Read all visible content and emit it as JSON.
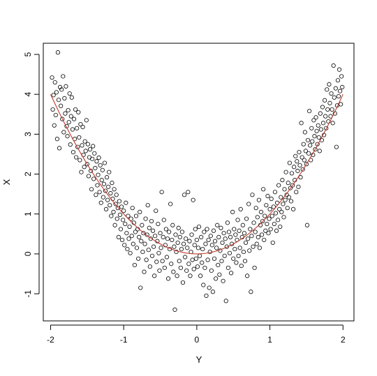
{
  "chart_data": {
    "type": "scatter",
    "title": "",
    "xlabel": "Y",
    "ylabel": "X",
    "xlim": [
      -2.1,
      2.15
    ],
    "ylim": [
      -1.68,
      5.28
    ],
    "x_ticks": [
      -2,
      -1,
      0,
      1,
      2
    ],
    "x_tick_labels": [
      "-2",
      "-1",
      "0",
      "1",
      "2"
    ],
    "y_ticks": [
      -1,
      0,
      1,
      2,
      3,
      4,
      5
    ],
    "y_tick_labels": [
      "-1",
      "0",
      "1",
      "2",
      "3",
      "4",
      "5"
    ],
    "grid": false,
    "point_style": "open-circle",
    "curve": {
      "type": "line",
      "color": "#c0392b",
      "formula": "y = x^2",
      "x_range": [
        -2,
        2
      ]
    },
    "points": [
      [
        -1.98,
        4.42
      ],
      [
        -1.97,
        3.62
      ],
      [
        -1.96,
        3.98
      ],
      [
        -1.95,
        3.22
      ],
      [
        -1.94,
        4.3
      ],
      [
        -1.93,
        3.48
      ],
      [
        -1.92,
        4.05
      ],
      [
        -1.91,
        2.88
      ],
      [
        -1.9,
        5.05
      ],
      [
        -1.89,
        3.86
      ],
      [
        -1.88,
        2.65
      ],
      [
        -1.87,
        4.18
      ],
      [
        -1.86,
        3.71
      ],
      [
        -1.85,
        4.12
      ],
      [
        -1.84,
        3.38
      ],
      [
        -1.83,
        4.45
      ],
      [
        -1.82,
        3.05
      ],
      [
        -1.81,
        3.9
      ],
      [
        -1.8,
        3.52
      ],
      [
        -1.79,
        4.2
      ],
      [
        -1.78,
        3.2
      ],
      [
        -1.77,
        2.95
      ],
      [
        -1.76,
        3.6
      ],
      [
        -1.75,
        3.3
      ],
      [
        -1.74,
        4.02
      ],
      [
        -1.73,
        2.74
      ],
      [
        -1.72,
        3.45
      ],
      [
        -1.71,
        3.92
      ],
      [
        -1.7,
        3.12
      ],
      [
        -1.69,
        2.55
      ],
      [
        -1.68,
        3.38
      ],
      [
        -1.67,
        2.88
      ],
      [
        -1.66,
        3.62
      ],
      [
        -1.65,
        2.42
      ],
      [
        -1.64,
        3.15
      ],
      [
        -1.63,
        2.68
      ],
      [
        -1.62,
        3.55
      ],
      [
        -1.61,
        2.92
      ],
      [
        -1.6,
        2.35
      ],
      [
        -1.59,
        3.25
      ],
      [
        -1.58,
        2.05
      ],
      [
        -1.57,
        2.72
      ],
      [
        -1.56,
        3.18
      ],
      [
        -1.55,
        2.48
      ],
      [
        -1.54,
        2.18
      ],
      [
        -1.53,
        2.82
      ],
      [
        -1.52,
        2.58
      ],
      [
        -1.51,
        3.35
      ],
      [
        -1.5,
        2.25
      ],
      [
        -1.49,
        2.75
      ],
      [
        -1.48,
        1.95
      ],
      [
        -1.47,
        2.42
      ],
      [
        -1.46,
        2.62
      ],
      [
        -1.45,
        2.08
      ],
      [
        -1.44,
        1.62
      ],
      [
        -1.43,
        2.38
      ],
      [
        -1.42,
        2.7
      ],
      [
        -1.41,
        1.88
      ],
      [
        -1.4,
        2.52
      ],
      [
        -1.39,
        2.15
      ],
      [
        -1.38,
        1.48
      ],
      [
        -1.37,
        2.32
      ],
      [
        -1.36,
        1.72
      ],
      [
        -1.35,
        1.98
      ],
      [
        -1.34,
        2.41
      ],
      [
        -1.33,
        1.55
      ],
      [
        -1.32,
        2.22
      ],
      [
        -1.31,
        1.28
      ],
      [
        -1.3,
        1.85
      ],
      [
        -1.29,
        2.1
      ],
      [
        -1.28,
        1.42
      ],
      [
        -1.27,
        1.75
      ],
      [
        -1.26,
        2.28
      ],
      [
        -1.25,
        1.58
      ],
      [
        -1.24,
        1.12
      ],
      [
        -1.23,
        1.92
      ],
      [
        -1.22,
        1.35
      ],
      [
        -1.21,
        1.68
      ],
      [
        -1.2,
        2.05
      ],
      [
        -1.19,
        1.22
      ],
      [
        -1.18,
        1.52
      ],
      [
        -1.17,
        0.95
      ],
      [
        -1.16,
        1.78
      ],
      [
        -1.15,
        1.38
      ],
      [
        -1.14,
        1.05
      ],
      [
        -1.13,
        1.62
      ],
      [
        -1.12,
        0.72
      ],
      [
        -1.11,
        1.25
      ],
      [
        -1.1,
        1.48
      ],
      [
        -1.09,
        0.88
      ],
      [
        -1.08,
        1.15
      ],
      [
        -1.07,
        0.42
      ],
      [
        -1.06,
        1.32
      ],
      [
        -1.05,
        0.98
      ],
      [
        -1.04,
        0.62
      ],
      [
        -1.03,
        1.18
      ],
      [
        -1.02,
        0.35
      ],
      [
        -1.01,
        0.85
      ],
      [
        -1.0,
        1.08
      ],
      [
        -0.99,
        0.22
      ],
      [
        -0.98,
        0.75
      ],
      [
        -0.97,
        1.28
      ],
      [
        -0.96,
        0.52
      ],
      [
        -0.95,
        0.12
      ],
      [
        -0.94,
        0.95
      ],
      [
        -0.93,
        0.38
      ],
      [
        -0.92,
        0.68
      ],
      [
        -0.91,
        0.02
      ],
      [
        -0.9,
        0.88
      ],
      [
        -0.89,
        0.45
      ],
      [
        -0.88,
        1.15
      ],
      [
        -0.87,
        0.25
      ],
      [
        -0.86,
        0.78
      ],
      [
        -0.85,
        -0.28
      ],
      [
        -0.84,
        0.55
      ],
      [
        -0.83,
        0.95
      ],
      [
        -0.82,
        0.15
      ],
      [
        -0.81,
        0.62
      ],
      [
        -0.8,
        -0.12
      ],
      [
        -0.79,
        0.42
      ],
      [
        -0.78,
        1.05
      ],
      [
        -0.77,
        -0.85
      ],
      [
        -0.76,
        0.32
      ],
      [
        -0.75,
        0.72
      ],
      [
        -0.74,
        0.05
      ],
      [
        -0.73,
        0.52
      ],
      [
        -0.72,
        -0.45
      ],
      [
        -0.71,
        0.25
      ],
      [
        -0.7,
        0.88
      ],
      [
        -0.69,
        -0.15
      ],
      [
        -0.68,
        0.48
      ],
      [
        -0.67,
        1.22
      ],
      [
        -0.66,
        0.1
      ],
      [
        -0.65,
        0.65
      ],
      [
        -0.64,
        -0.32
      ],
      [
        -0.63,
        0.38
      ],
      [
        -0.62,
        0.82
      ],
      [
        -0.61,
        -0.05
      ],
      [
        -0.6,
        0.58
      ],
      [
        -0.59,
        0.18
      ],
      [
        -0.58,
        -0.55
      ],
      [
        -0.57,
        0.45
      ],
      [
        -0.56,
        1.08
      ],
      [
        -0.55,
        -0.2
      ],
      [
        -0.54,
        0.32
      ],
      [
        -0.53,
        0.75
      ],
      [
        -0.52,
        0.02
      ],
      [
        -0.51,
        -0.42
      ],
      [
        -0.5,
        0.52
      ],
      [
        -0.49,
        0.15
      ],
      [
        -0.48,
        1.55
      ],
      [
        -0.47,
        -0.18
      ],
      [
        -0.46,
        0.42
      ],
      [
        -0.45,
        0.85
      ],
      [
        -0.44,
        -0.35
      ],
      [
        -0.43,
        0.22
      ],
      [
        -0.42,
        0.62
      ],
      [
        -0.41,
        -0.08
      ],
      [
        -0.4,
        0.38
      ],
      [
        -0.39,
        -0.62
      ],
      [
        -0.38,
        0.55
      ],
      [
        -0.37,
        0.12
      ],
      [
        -0.36,
        1.25
      ],
      [
        -0.35,
        -0.25
      ],
      [
        -0.34,
        0.35
      ],
      [
        -0.33,
        0.72
      ],
      [
        -0.32,
        -0.45
      ],
      [
        -0.31,
        0.18
      ],
      [
        -0.3,
        -1.4
      ],
      [
        -0.29,
        0.48
      ],
      [
        -0.28,
        0.05
      ],
      [
        -0.27,
        -0.55
      ],
      [
        -0.26,
        0.28
      ],
      [
        -0.25,
        0.65
      ],
      [
        -0.24,
        -0.18
      ],
      [
        -0.23,
        0.42
      ],
      [
        -0.22,
        -0.35
      ],
      [
        -0.21,
        0.12
      ],
      [
        -0.2,
        0.55
      ],
      [
        -0.19,
        -0.72
      ],
      [
        -0.18,
        0.25
      ],
      [
        -0.17,
        1.48
      ],
      [
        -0.16,
        -0.08
      ],
      [
        -0.15,
        0.38
      ],
      [
        -0.14,
        -0.42
      ],
      [
        -0.13,
        0.15
      ],
      [
        -0.12,
        1.55
      ],
      [
        -0.11,
        -0.25
      ],
      [
        -0.1,
        0.32
      ],
      [
        -0.09,
        -0.55
      ],
      [
        -0.08,
        0.05
      ],
      [
        -0.07,
        0.48
      ],
      [
        -0.06,
        -0.15
      ],
      [
        -0.05,
        1.35
      ],
      [
        -0.04,
        -0.38
      ],
      [
        -0.03,
        0.22
      ],
      [
        -0.02,
        0.62
      ],
      [
        -0.01,
        -0.12
      ],
      [
        0.0,
        0.35
      ],
      [
        0.01,
        -0.32
      ],
      [
        0.02,
        0.15
      ],
      [
        0.03,
        0.68
      ],
      [
        0.04,
        -0.05
      ],
      [
        0.05,
        -0.55
      ],
      [
        0.06,
        0.42
      ],
      [
        0.07,
        -0.22
      ],
      [
        0.08,
        0.12
      ],
      [
        0.09,
        -0.78
      ],
      [
        0.1,
        0.55
      ],
      [
        0.11,
        -0.35
      ],
      [
        0.12,
        0.25
      ],
      [
        0.13,
        -1.05
      ],
      [
        0.14,
        0.62
      ],
      [
        0.15,
        -0.15
      ],
      [
        0.16,
        0.35
      ],
      [
        0.17,
        -0.85
      ],
      [
        0.18,
        0.05
      ],
      [
        0.19,
        0.45
      ],
      [
        0.2,
        -0.42
      ],
      [
        0.21,
        0.22
      ],
      [
        0.22,
        -0.95
      ],
      [
        0.23,
        0.58
      ],
      [
        0.24,
        -0.12
      ],
      [
        0.25,
        0.32
      ],
      [
        0.26,
        -0.62
      ],
      [
        0.27,
        0.15
      ],
      [
        0.28,
        0.72
      ],
      [
        0.29,
        -0.28
      ],
      [
        0.3,
        0.42
      ],
      [
        0.31,
        -0.52
      ],
      [
        0.32,
        0.08
      ],
      [
        0.33,
        0.65
      ],
      [
        0.34,
        -0.18
      ],
      [
        0.35,
        0.28
      ],
      [
        0.36,
        -0.68
      ],
      [
        0.37,
        0.52
      ],
      [
        0.38,
        -0.05
      ],
      [
        0.39,
        0.38
      ],
      [
        0.4,
        -1.18
      ],
      [
        0.41,
        0.18
      ],
      [
        0.42,
        0.78
      ],
      [
        0.43,
        -0.35
      ],
      [
        0.44,
        0.55
      ],
      [
        0.45,
        0.02
      ],
      [
        0.46,
        0.42
      ],
      [
        0.47,
        -0.48
      ],
      [
        0.48,
        0.25
      ],
      [
        0.49,
        1.05
      ],
      [
        0.5,
        -0.12
      ],
      [
        0.51,
        0.62
      ],
      [
        0.52,
        0.12
      ],
      [
        0.53,
        0.48
      ],
      [
        0.54,
        -0.22
      ],
      [
        0.55,
        0.35
      ],
      [
        0.56,
        0.85
      ],
      [
        0.57,
        -0.05
      ],
      [
        0.58,
        0.58
      ],
      [
        0.59,
        0.15
      ],
      [
        0.6,
        1.12
      ],
      [
        0.61,
        -0.3
      ],
      [
        0.62,
        0.42
      ],
      [
        0.63,
        0.72
      ],
      [
        0.64,
        0.05
      ],
      [
        0.65,
        0.52
      ],
      [
        0.66,
        -0.18
      ],
      [
        0.67,
        0.28
      ],
      [
        0.68,
        0.88
      ],
      [
        0.69,
        -0.55
      ],
      [
        0.7,
        0.38
      ],
      [
        0.71,
        1.25
      ],
      [
        0.72,
        0.08
      ],
      [
        0.73,
        0.62
      ],
      [
        0.74,
        -0.95
      ],
      [
        0.75,
        0.45
      ],
      [
        0.76,
        1.48
      ],
      [
        0.77,
        0.18
      ],
      [
        0.78,
        0.78
      ],
      [
        0.79,
        -0.35
      ],
      [
        0.8,
        0.55
      ],
      [
        0.81,
        1.15
      ],
      [
        0.82,
        0.25
      ],
      [
        0.83,
        0.92
      ],
      [
        0.84,
        0.42
      ],
      [
        0.85,
        1.35
      ],
      [
        0.86,
        0.15
      ],
      [
        0.87,
        0.72
      ],
      [
        0.88,
        1.05
      ],
      [
        0.89,
        0.48
      ],
      [
        0.9,
        0.82
      ],
      [
        0.91,
        1.62
      ],
      [
        0.92,
        0.35
      ],
      [
        0.93,
        0.95
      ],
      [
        0.94,
        0.58
      ],
      [
        0.95,
        1.22
      ],
      [
        0.96,
        0.75
      ],
      [
        0.97,
        1.45
      ],
      [
        0.98,
        0.52
      ],
      [
        0.99,
        0.88
      ],
      [
        1.0,
        1.12
      ],
      [
        1.01,
        0.62
      ],
      [
        1.02,
        1.38
      ],
      [
        1.03,
        0.95
      ],
      [
        1.04,
        0.28
      ],
      [
        1.05,
        1.18
      ],
      [
        1.06,
        0.75
      ],
      [
        1.07,
        1.55
      ],
      [
        1.08,
        1.02
      ],
      [
        1.09,
        0.58
      ],
      [
        1.1,
        1.28
      ],
      [
        1.11,
        0.85
      ],
      [
        1.12,
        1.72
      ],
      [
        1.13,
        1.12
      ],
      [
        1.14,
        0.68
      ],
      [
        1.15,
        1.42
      ],
      [
        1.16,
        1.05
      ],
      [
        1.17,
        1.85
      ],
      [
        1.18,
        1.25
      ],
      [
        1.19,
        0.92
      ],
      [
        1.2,
        1.62
      ],
      [
        1.21,
        1.35
      ],
      [
        1.22,
        2.05
      ],
      [
        1.23,
        1.48
      ],
      [
        1.24,
        1.15
      ],
      [
        1.25,
        1.78
      ],
      [
        1.26,
        1.42
      ],
      [
        1.27,
        2.28
      ],
      [
        1.28,
        1.65
      ],
      [
        1.29,
        1.32
      ],
      [
        1.3,
        2.02
      ],
      [
        1.31,
        1.72
      ],
      [
        1.32,
        1.12
      ],
      [
        1.33,
        2.18
      ],
      [
        1.34,
        1.85
      ],
      [
        1.35,
        2.45
      ],
      [
        1.36,
        1.55
      ],
      [
        1.37,
        2.32
      ],
      [
        1.38,
        2.08
      ],
      [
        1.39,
        1.68
      ],
      [
        1.4,
        2.55
      ],
      [
        1.41,
        2.22
      ],
      [
        1.42,
        1.92
      ],
      [
        1.43,
        3.28
      ],
      [
        1.44,
        2.42
      ],
      [
        1.45,
        2.12
      ],
      [
        1.46,
        2.75
      ],
      [
        1.47,
        2.35
      ],
      [
        1.48,
        3.05
      ],
      [
        1.49,
        2.58
      ],
      [
        1.5,
        2.25
      ],
      [
        1.51,
        0.72
      ],
      [
        1.52,
        2.85
      ],
      [
        1.53,
        2.52
      ],
      [
        1.54,
        3.58
      ],
      [
        1.55,
        2.72
      ],
      [
        1.56,
        2.35
      ],
      [
        1.57,
        3.15
      ],
      [
        1.58,
        2.82
      ],
      [
        1.59,
        2.48
      ],
      [
        1.6,
        3.35
      ],
      [
        1.61,
        2.95
      ],
      [
        1.62,
        2.62
      ],
      [
        1.63,
        3.42
      ],
      [
        1.64,
        3.08
      ],
      [
        1.65,
        2.75
      ],
      [
        1.66,
        3.22
      ],
      [
        1.67,
        2.92
      ],
      [
        1.68,
        2.58
      ],
      [
        1.69,
        3.52
      ],
      [
        1.7,
        3.12
      ],
      [
        1.71,
        2.85
      ],
      [
        1.72,
        3.68
      ],
      [
        1.73,
        3.28
      ],
      [
        1.74,
        2.98
      ],
      [
        1.75,
        3.85
      ],
      [
        1.76,
        3.45
      ],
      [
        1.77,
        3.15
      ],
      [
        1.78,
        4.12
      ],
      [
        1.79,
        3.62
      ],
      [
        1.8,
        3.32
      ],
      [
        1.81,
        4.25
      ],
      [
        1.82,
        3.78
      ],
      [
        1.83,
        3.45
      ],
      [
        1.84,
        4.02
      ],
      [
        1.85,
        3.62
      ],
      [
        1.86,
        3.28
      ],
      [
        1.87,
        4.72
      ],
      [
        1.88,
        3.92
      ],
      [
        1.89,
        3.52
      ],
      [
        1.9,
        4.15
      ],
      [
        1.91,
        2.68
      ],
      [
        1.92,
        3.72
      ],
      [
        1.93,
        4.35
      ],
      [
        1.94,
        3.95
      ],
      [
        1.95,
        4.62
      ],
      [
        1.96,
        4.08
      ],
      [
        1.97,
        3.75
      ],
      [
        1.98,
        4.45
      ],
      [
        1.99,
        4.18
      ]
    ]
  }
}
